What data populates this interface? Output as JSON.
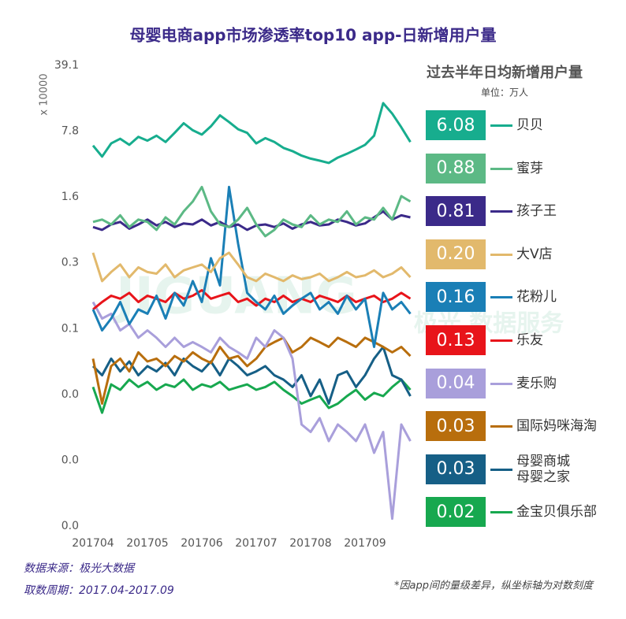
{
  "chart_data": {
    "type": "line",
    "title": "母婴电商app市场渗透率top10 app-日新增用户量",
    "y_label": "x 10000",
    "legend_title": "过去半年日均新增用户量",
    "legend_subtitle": "单位：万人",
    "source": "数据来源：极光大数据",
    "period": "取数周期：2017.04-2017.09",
    "note": "*因app间的量级差异，纵坐标轴为对数刻度",
    "watermark": "JIGUANG",
    "watermark_sub": "极光 数据服务",
    "log_scale": true,
    "grid": false,
    "ylim": [
      0.00050048,
      39.1
    ],
    "yticks": [
      39.1,
      {
        "value": 7.82,
        "label": "7.8"
      },
      {
        "value": 1.564,
        "label": "1.6"
      },
      {
        "value": 0.3128,
        "label": "0.3"
      },
      {
        "value": 0.06256,
        "label": "0.1"
      },
      {
        "value": 0.012512,
        "label": "0.0"
      },
      {
        "value": 0.0025024,
        "label": "0.0"
      },
      {
        "value": 0.00050048,
        "label": "0.0"
      }
    ],
    "categories": [
      "201704",
      null,
      null,
      null,
      null,
      null,
      "201705",
      null,
      null,
      null,
      null,
      null,
      "201706",
      null,
      null,
      null,
      null,
      null,
      "201707",
      null,
      null,
      null,
      null,
      null,
      "201708",
      null,
      null,
      null,
      null,
      null,
      "201709",
      null,
      null,
      null,
      null,
      null
    ],
    "series": [
      {
        "name": "贝贝",
        "color": "#17ad8e",
        "avg": 6.08,
        "avg_label": "6.08",
        "values": [
          5.5,
          4.2,
          5.8,
          6.5,
          5.6,
          6.8,
          6.2,
          7.0,
          6.0,
          7.5,
          9.5,
          8.0,
          7.2,
          8.8,
          11.5,
          9.8,
          8.2,
          7.5,
          5.8,
          6.6,
          6.0,
          5.2,
          4.8,
          4.3,
          4.0,
          3.8,
          3.6,
          4.1,
          4.5,
          5.0,
          5.6,
          7.0,
          15.5,
          12.0,
          8.6,
          6.0
        ]
      },
      {
        "name": "蜜芽",
        "color": "#5cb985",
        "avg": 0.88,
        "avg_label": "0.88",
        "values": [
          0.85,
          0.9,
          0.8,
          1.0,
          0.75,
          0.9,
          0.85,
          0.7,
          0.95,
          0.8,
          1.1,
          1.4,
          2.0,
          1.1,
          0.8,
          0.75,
          0.9,
          1.2,
          0.8,
          0.6,
          0.7,
          0.9,
          0.8,
          0.75,
          1.0,
          0.8,
          0.9,
          0.85,
          1.1,
          0.8,
          0.95,
          0.9,
          1.2,
          0.9,
          1.6,
          1.4
        ]
      },
      {
        "name": "孩子王",
        "color": "#3b2a89",
        "avg": 0.81,
        "avg_label": "0.81",
        "values": [
          0.75,
          0.7,
          0.8,
          0.85,
          0.72,
          0.8,
          0.9,
          0.78,
          0.85,
          0.75,
          0.82,
          0.8,
          0.9,
          0.78,
          0.85,
          0.75,
          0.8,
          0.7,
          0.78,
          0.8,
          0.75,
          0.82,
          0.72,
          0.8,
          0.85,
          0.78,
          0.8,
          0.9,
          0.85,
          0.78,
          0.82,
          0.95,
          1.1,
          0.9,
          1.0,
          0.95
        ]
      },
      {
        "name": "大V店",
        "color": "#e2b96c",
        "avg": 0.2,
        "avg_label": "0.20",
        "values": [
          0.4,
          0.2,
          0.25,
          0.3,
          0.22,
          0.28,
          0.25,
          0.24,
          0.3,
          0.22,
          0.26,
          0.28,
          0.3,
          0.25,
          0.35,
          0.4,
          0.3,
          0.22,
          0.2,
          0.24,
          0.22,
          0.2,
          0.23,
          0.21,
          0.22,
          0.24,
          0.2,
          0.22,
          0.25,
          0.22,
          0.23,
          0.26,
          0.22,
          0.24,
          0.28,
          0.22
        ]
      },
      {
        "name": "花粉儿",
        "color": "#1a7fb6",
        "avg": 0.16,
        "avg_label": "0.16",
        "values": [
          0.1,
          0.06,
          0.08,
          0.12,
          0.07,
          0.1,
          0.09,
          0.14,
          0.08,
          0.15,
          0.11,
          0.2,
          0.12,
          0.35,
          0.18,
          2.0,
          0.5,
          0.15,
          0.12,
          0.1,
          0.14,
          0.09,
          0.11,
          0.13,
          0.15,
          0.1,
          0.12,
          0.09,
          0.14,
          0.1,
          0.13,
          0.04,
          0.15,
          0.1,
          0.12,
          0.09
        ]
      },
      {
        "name": "乐友",
        "color": "#e8141a",
        "avg": 0.13,
        "avg_label": "0.13",
        "values": [
          0.1,
          0.12,
          0.14,
          0.13,
          0.15,
          0.12,
          0.14,
          0.13,
          0.12,
          0.15,
          0.13,
          0.14,
          0.16,
          0.13,
          0.14,
          0.15,
          0.12,
          0.13,
          0.11,
          0.13,
          0.12,
          0.14,
          0.12,
          0.13,
          0.12,
          0.14,
          0.13,
          0.12,
          0.14,
          0.12,
          0.13,
          0.14,
          0.12,
          0.13,
          0.15,
          0.13
        ]
      },
      {
        "name": "麦乐购",
        "color": "#a99fdb",
        "avg": 0.04,
        "avg_label": "0.04",
        "values": [
          0.12,
          0.08,
          0.09,
          0.06,
          0.07,
          0.05,
          0.06,
          0.05,
          0.04,
          0.05,
          0.04,
          0.045,
          0.04,
          0.035,
          0.05,
          0.04,
          0.035,
          0.03,
          0.05,
          0.04,
          0.06,
          0.05,
          0.03,
          0.006,
          0.005,
          0.007,
          0.004,
          0.006,
          0.005,
          0.004,
          0.006,
          0.003,
          0.005,
          0.0006,
          0.006,
          0.004
        ]
      },
      {
        "name": "国际妈咪海淘",
        "color": "#b86e0d",
        "avg": 0.03,
        "avg_label": "0.03",
        "values": [
          0.03,
          0.01,
          0.025,
          0.03,
          0.022,
          0.035,
          0.028,
          0.03,
          0.025,
          0.032,
          0.028,
          0.035,
          0.03,
          0.027,
          0.04,
          0.03,
          0.032,
          0.025,
          0.03,
          0.04,
          0.045,
          0.05,
          0.035,
          0.04,
          0.05,
          0.045,
          0.04,
          0.05,
          0.045,
          0.04,
          0.05,
          0.045,
          0.04,
          0.035,
          0.04,
          0.032
        ]
      },
      {
        "name": "母婴商城\n母婴之家",
        "color": "#165f86",
        "avg": 0.03,
        "avg_label": "0.03",
        "values": [
          0.025,
          0.02,
          0.03,
          0.022,
          0.028,
          0.02,
          0.025,
          0.022,
          0.027,
          0.02,
          0.03,
          0.025,
          0.022,
          0.028,
          0.02,
          0.03,
          0.025,
          0.02,
          0.022,
          0.025,
          0.02,
          0.018,
          0.015,
          0.02,
          0.012,
          0.018,
          0.01,
          0.02,
          0.022,
          0.015,
          0.02,
          0.03,
          0.04,
          0.02,
          0.018,
          0.012
        ]
      },
      {
        "name": "金宝贝俱乐部",
        "color": "#17a84f",
        "avg": 0.02,
        "avg_label": "0.02",
        "values": [
          0.015,
          0.008,
          0.016,
          0.014,
          0.018,
          0.015,
          0.017,
          0.014,
          0.016,
          0.015,
          0.018,
          0.014,
          0.016,
          0.015,
          0.017,
          0.014,
          0.015,
          0.016,
          0.014,
          0.015,
          0.017,
          0.014,
          0.012,
          0.01,
          0.011,
          0.012,
          0.009,
          0.01,
          0.012,
          0.014,
          0.011,
          0.013,
          0.012,
          0.015,
          0.018,
          0.014
        ]
      }
    ]
  }
}
